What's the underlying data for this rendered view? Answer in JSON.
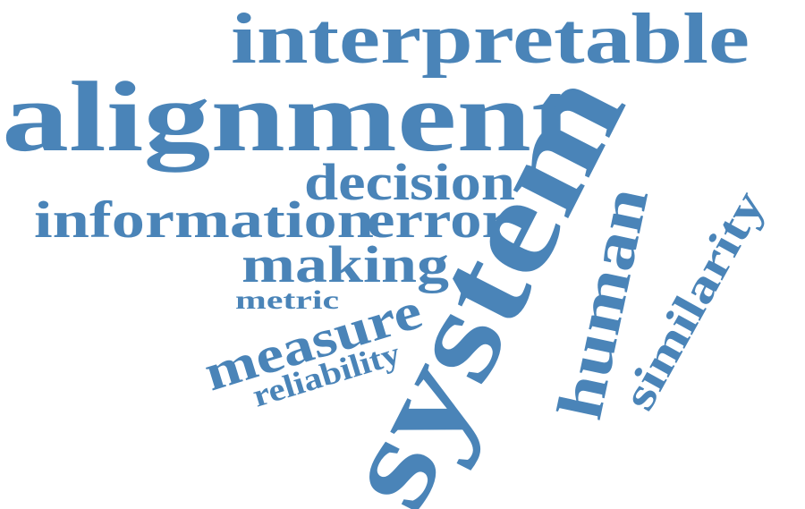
{
  "color": "#4a84b8",
  "words": [
    {
      "key": "interpretable",
      "text": "interpretable"
    },
    {
      "key": "alignment",
      "text": "alignment"
    },
    {
      "key": "decision",
      "text": "decision"
    },
    {
      "key": "information",
      "text": "information"
    },
    {
      "key": "error",
      "text": "error"
    },
    {
      "key": "making",
      "text": "making"
    },
    {
      "key": "metric",
      "text": "metric"
    },
    {
      "key": "measure",
      "text": "measure"
    },
    {
      "key": "reliability",
      "text": "reliability"
    },
    {
      "key": "system",
      "text": "system"
    },
    {
      "key": "human",
      "text": "human"
    },
    {
      "key": "similarity",
      "text": "similarity"
    }
  ]
}
